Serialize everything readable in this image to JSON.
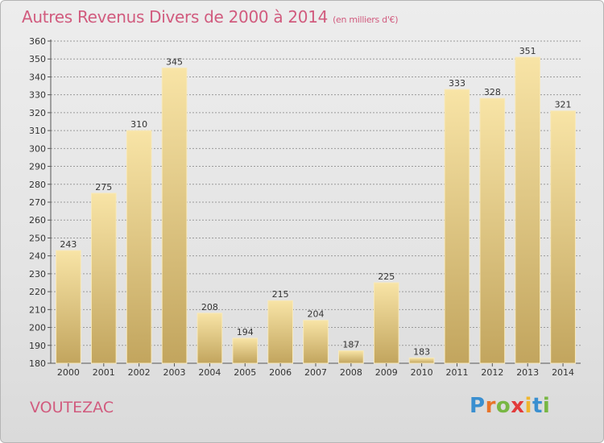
{
  "title": "Autres Revenus Divers de 2000 à 2014",
  "unit": "(en milliers d'€)",
  "commune": "VOUTEZAC",
  "brand": {
    "letters": [
      "P",
      "r",
      "o",
      "x",
      "i",
      "t",
      "i"
    ],
    "colors": [
      "#3a8fd0",
      "#e8742a",
      "#78b743",
      "#e23b3b",
      "#f0b62e",
      "#3a8fd0",
      "#78b743"
    ]
  },
  "colors": {
    "title": "#d15b7e",
    "bar_top": "#f8e4a6",
    "bar_bottom": "#c2a55e",
    "grid": "#9a9a9a"
  },
  "chart_data": {
    "type": "bar",
    "categories": [
      "2000",
      "2001",
      "2002",
      "2003",
      "2004",
      "2005",
      "2006",
      "2007",
      "2008",
      "2009",
      "2010",
      "2011",
      "2012",
      "2013",
      "2014"
    ],
    "values": [
      243,
      275,
      310,
      345,
      208,
      194,
      215,
      204,
      187,
      225,
      183,
      333,
      328,
      351,
      321
    ],
    "ylim": [
      180,
      360
    ],
    "yticks": [
      180,
      190,
      200,
      210,
      220,
      230,
      240,
      250,
      260,
      270,
      280,
      290,
      300,
      310,
      320,
      330,
      340,
      350,
      360
    ],
    "grid": true
  }
}
